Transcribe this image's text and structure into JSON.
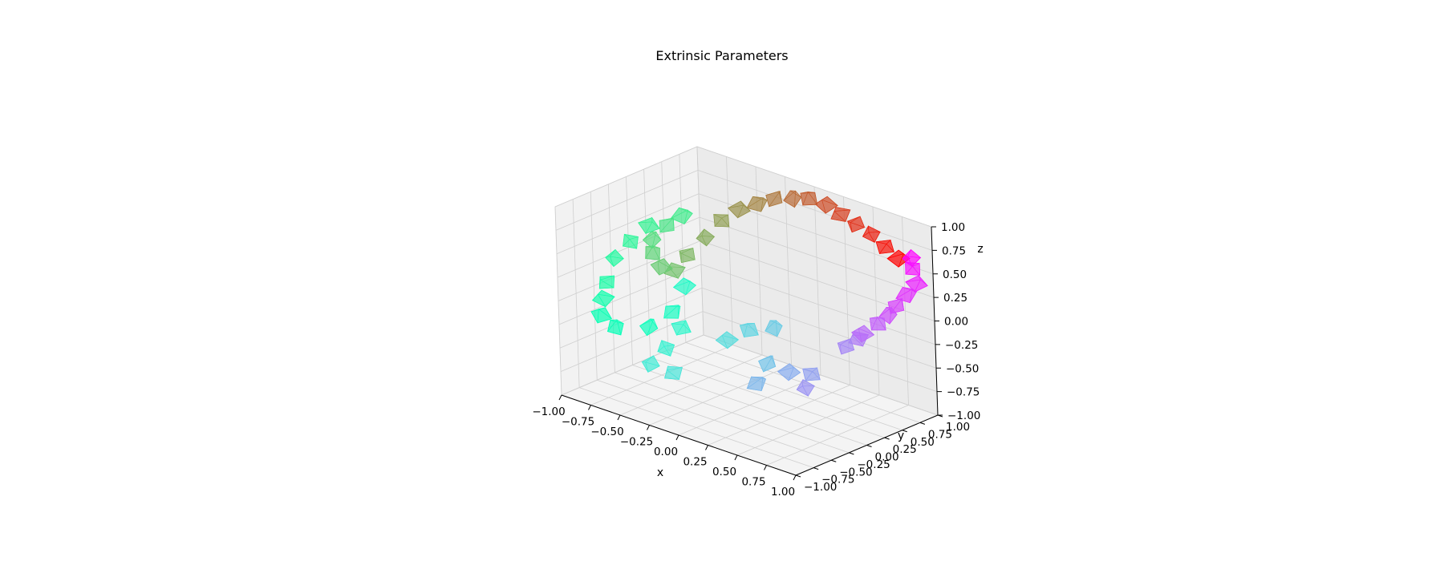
{
  "chart_data": {
    "type": "scatter",
    "projection": "3d",
    "title": "Extrinsic Parameters",
    "xlabel": "x",
    "ylabel": "y",
    "zlabel": "z",
    "xlim": [
      -1.0,
      1.0
    ],
    "ylim": [
      -1.0,
      1.0
    ],
    "zlim": [
      -1.0,
      1.0
    ],
    "grid": true,
    "xticks": [
      "−1.00",
      "−0.75",
      "−0.50",
      "−0.25",
      "0.00",
      "0.25",
      "0.50",
      "0.75",
      "1.00"
    ],
    "yticks": [
      "−1.00",
      "−0.75",
      "−0.50",
      "−0.25",
      "0.00",
      "0.25",
      "0.50",
      "0.75",
      "1.00"
    ],
    "zticks": [
      "−1.00",
      "−0.75",
      "−0.50",
      "−0.25",
      "0.00",
      "0.25",
      "0.50",
      "0.75",
      "1.00"
    ],
    "tick_values": [
      -1.0,
      -0.75,
      -0.5,
      -0.25,
      0.0,
      0.25,
      0.5,
      0.75,
      1.0
    ],
    "marker": "camera-frustum",
    "colormap": "rainbow",
    "colors": {
      "pane": "#f2f2f2",
      "grid": "#cfcfcf",
      "axis": "#000000"
    },
    "cameras": [
      {
        "x": 0.72,
        "y": 0.98,
        "z": 0.55
      },
      {
        "x": 0.6,
        "y": 0.99,
        "z": 0.62
      },
      {
        "x": 0.48,
        "y": 1.0,
        "z": 0.7
      },
      {
        "x": 0.35,
        "y": 1.0,
        "z": 0.75
      },
      {
        "x": 0.22,
        "y": 1.0,
        "z": 0.8
      },
      {
        "x": 0.1,
        "y": 1.0,
        "z": 0.85
      },
      {
        "x": -0.05,
        "y": 1.0,
        "z": 0.85
      },
      {
        "x": -0.18,
        "y": 0.98,
        "z": 0.8
      },
      {
        "x": -0.32,
        "y": 0.95,
        "z": 0.75
      },
      {
        "x": -0.45,
        "y": 0.92,
        "z": 0.65
      },
      {
        "x": -0.58,
        "y": 0.88,
        "z": 0.55
      },
      {
        "x": -0.7,
        "y": 0.82,
        "z": 0.4
      },
      {
        "x": -0.8,
        "y": 0.75,
        "z": 0.2
      },
      {
        "x": -0.9,
        "y": 0.65,
        "z": 0.0
      },
      {
        "x": -0.95,
        "y": 0.55,
        "z": -0.15
      },
      {
        "x": -1.0,
        "y": 0.45,
        "z": -0.1
      },
      {
        "x": -0.98,
        "y": 0.3,
        "z": 0.1
      },
      {
        "x": -0.92,
        "y": 0.2,
        "z": 0.3
      },
      {
        "x": -0.85,
        "y": 0.3,
        "z": 0.45
      },
      {
        "x": -0.78,
        "y": 0.4,
        "z": 0.55
      },
      {
        "x": -0.88,
        "y": 0.1,
        "z": 0.5
      },
      {
        "x": -0.95,
        "y": -0.05,
        "z": 0.35
      },
      {
        "x": -1.0,
        "y": -0.2,
        "z": 0.2
      },
      {
        "x": -0.98,
        "y": -0.35,
        "z": 0.0
      },
      {
        "x": -0.92,
        "y": -0.5,
        "z": -0.1
      },
      {
        "x": -0.85,
        "y": -0.65,
        "z": -0.2
      },
      {
        "x": -0.7,
        "y": -0.7,
        "z": -0.25
      },
      {
        "x": -0.6,
        "y": -0.4,
        "z": -0.3
      },
      {
        "x": -0.55,
        "y": -0.15,
        "z": -0.2
      },
      {
        "x": -0.62,
        "y": 0.15,
        "z": -0.05
      },
      {
        "x": -0.6,
        "y": 0.05,
        "z": -0.45
      },
      {
        "x": -0.55,
        "y": -0.25,
        "z": -0.55
      },
      {
        "x": -0.5,
        "y": -0.55,
        "z": -0.6
      },
      {
        "x": -0.4,
        "y": -0.4,
        "z": -0.7
      },
      {
        "x": -0.3,
        "y": 0.2,
        "z": -0.5
      },
      {
        "x": -0.2,
        "y": 0.35,
        "z": -0.4
      },
      {
        "x": -0.05,
        "y": 0.45,
        "z": -0.35
      },
      {
        "x": 0.1,
        "y": 0.1,
        "z": -0.55
      },
      {
        "x": 0.22,
        "y": -0.25,
        "z": -0.6
      },
      {
        "x": 0.35,
        "y": 0.0,
        "z": -0.5
      },
      {
        "x": 0.48,
        "y": 0.1,
        "z": -0.5
      },
      {
        "x": 0.55,
        "y": -0.1,
        "z": -0.55
      },
      {
        "x": 0.6,
        "y": 0.4,
        "z": -0.25
      },
      {
        "x": 0.68,
        "y": 0.45,
        "z": -0.15
      },
      {
        "x": 0.75,
        "y": 0.4,
        "z": -0.05
      },
      {
        "x": 0.82,
        "y": 0.5,
        "z": 0.05
      },
      {
        "x": 0.88,
        "y": 0.55,
        "z": 0.15
      },
      {
        "x": 0.92,
        "y": 0.6,
        "z": 0.25
      },
      {
        "x": 0.95,
        "y": 0.7,
        "z": 0.35
      },
      {
        "x": 0.98,
        "y": 0.8,
        "z": 0.45
      },
      {
        "x": 0.9,
        "y": 0.88,
        "z": 0.55
      },
      {
        "x": 0.85,
        "y": 0.95,
        "z": 0.62
      }
    ]
  }
}
